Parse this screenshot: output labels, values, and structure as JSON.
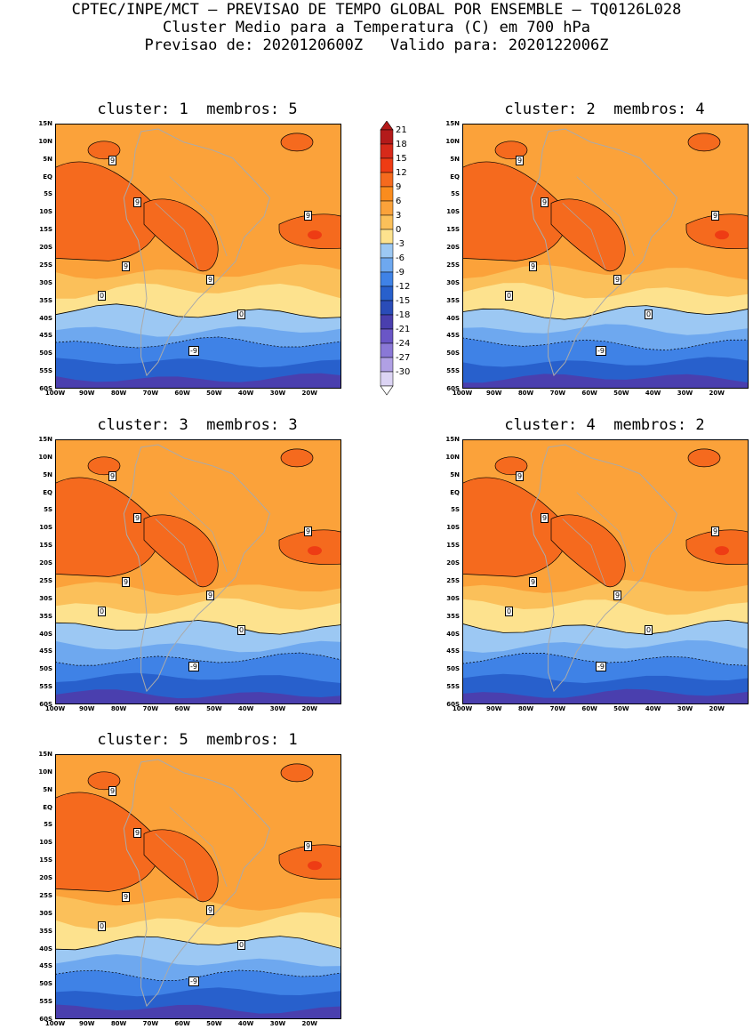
{
  "header": {
    "line1": "CPTEC/INPE/MCT – PREVISAO DE TEMPO GLOBAL POR ENSEMBLE – TQ0126L028",
    "line2": "Cluster Medio para a Temperatura (C) em 700 hPa",
    "line3": "Previsao de: 2020120600Z   Valido para: 2020122006Z"
  },
  "panels": [
    {
      "title": "cluster: 1  membros: 5"
    },
    {
      "title": "cluster: 2  membros: 4"
    },
    {
      "title": "cluster: 3  membros: 3"
    },
    {
      "title": "cluster: 4  membros: 2"
    },
    {
      "title": "cluster: 5  membros: 1"
    }
  ],
  "lat_labels": [
    "15N",
    "10N",
    "5N",
    "EQ",
    "5S",
    "10S",
    "15S",
    "20S",
    "25S",
    "30S",
    "35S",
    "40S",
    "45S",
    "50S",
    "55S",
    "60S"
  ],
  "lon_labels": [
    "100W",
    "90W",
    "80W",
    "70W",
    "60W",
    "50W",
    "40W",
    "30W",
    "20W"
  ],
  "contour_labels": {
    "nine": "9",
    "zero": "0",
    "minus_nine": "-9"
  },
  "colorbar": {
    "levels": [
      "21",
      "18",
      "15",
      "12",
      "9",
      "6",
      "3",
      "0",
      "-3",
      "-6",
      "-9",
      "-12",
      "-15",
      "-18",
      "-21",
      "-24",
      "-27",
      "-30"
    ],
    "colors": [
      "#b41a1a",
      "#d72a1a",
      "#ee3c14",
      "#f56a1e",
      "#fa8c1e",
      "#fba23a",
      "#fbc05a",
      "#fde28e",
      "#9cc8f3",
      "#6ea8ef",
      "#3f82e6",
      "#2860cc",
      "#2a4cb8",
      "#4a3fae",
      "#6a56c6",
      "#8a78d6",
      "#b0a0e4",
      "#dcd4f4"
    ]
  },
  "styles": {
    "warm_bg": "#fba23a",
    "hot": "#f56a1e",
    "hotter": "#ee3c14",
    "light": "#fbc05a",
    "pale": "#fde28e",
    "cold1": "#9cc8f3",
    "cold2": "#6ea8ef",
    "cold3": "#3f82e6",
    "cold4": "#2860cc",
    "cold5": "#4a3fae",
    "land": "#aaaaaa"
  }
}
